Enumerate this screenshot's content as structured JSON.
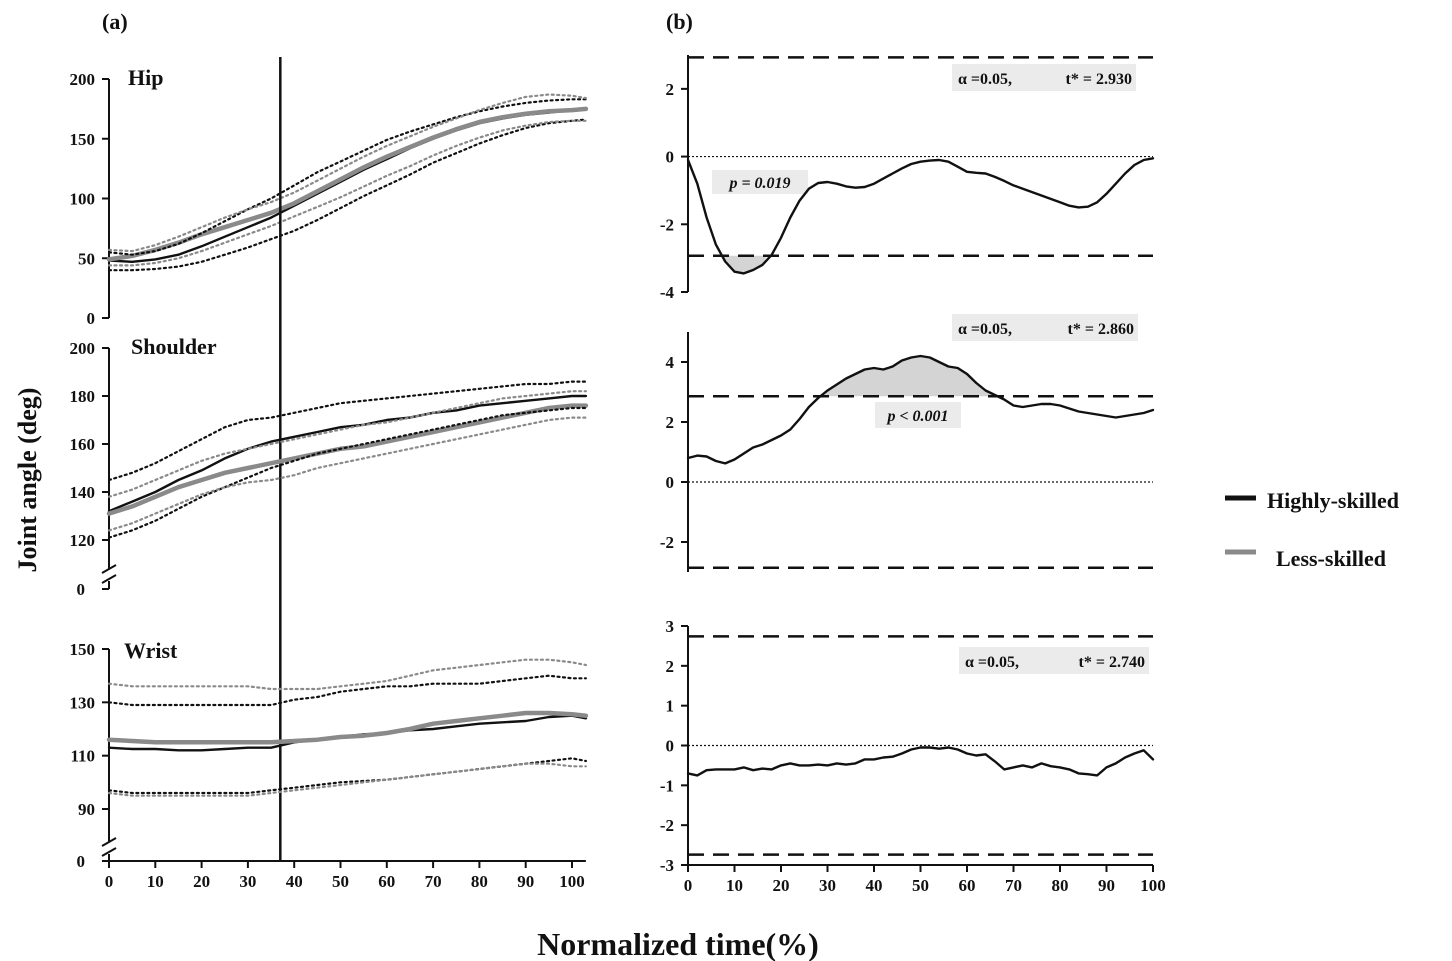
{
  "figure": {
    "panel_a_label": "(a)",
    "panel_b_label": "(b)",
    "y_axis_label": "Joint angle (deg)",
    "x_axis_label": "Normalized time(%)",
    "legend": [
      {
        "label": "Highly-skilled",
        "color": "#111111"
      },
      {
        "label": "Less-skilled",
        "color": "#8a8a8a"
      }
    ]
  },
  "chart_data": [
    {
      "type": "line",
      "panel": "a",
      "title": "Hip",
      "xlim": [
        0,
        103
      ],
      "ylim": [
        0,
        200
      ],
      "yticks": [
        0,
        50,
        100,
        150,
        200
      ],
      "xticks": [],
      "axis_break": false,
      "vline_x": 37,
      "x": [
        0,
        5,
        10,
        15,
        20,
        25,
        30,
        35,
        40,
        45,
        50,
        55,
        60,
        65,
        70,
        75,
        80,
        85,
        90,
        95,
        100,
        103
      ],
      "series": [
        {
          "name": "Highly-skilled",
          "style": "mean",
          "color": "#111111",
          "values": [
            48,
            47,
            49,
            53,
            60,
            68,
            76,
            84,
            94,
            104,
            114,
            124,
            133,
            142,
            150,
            157,
            163,
            167,
            170,
            172,
            174,
            175
          ]
        },
        {
          "name": "Less-skilled",
          "style": "mean",
          "color": "#8a8a8a",
          "values": [
            49,
            52,
            57,
            63,
            70,
            76,
            82,
            88,
            96,
            106,
            116,
            126,
            135,
            143,
            151,
            158,
            164,
            168,
            171,
            173,
            174,
            175
          ]
        },
        {
          "name": "Highly-skilled",
          "style": "band",
          "color": "#111111",
          "values": [
            55,
            53,
            56,
            62,
            71,
            81,
            91,
            100,
            111,
            122,
            131,
            140,
            149,
            156,
            162,
            168,
            173,
            177,
            180,
            182,
            183,
            183
          ]
        },
        {
          "name": "Highly-skilled",
          "style": "band",
          "color": "#111111",
          "values": [
            40,
            40,
            41,
            43,
            47,
            53,
            59,
            66,
            73,
            82,
            92,
            102,
            111,
            120,
            130,
            138,
            146,
            153,
            159,
            163,
            165,
            166
          ]
        },
        {
          "name": "Less-skilled",
          "style": "band",
          "color": "#8a8a8a",
          "values": [
            57,
            56,
            61,
            68,
            76,
            84,
            91,
            97,
            105,
            115,
            125,
            135,
            144,
            152,
            160,
            167,
            174,
            180,
            185,
            187,
            186,
            184
          ]
        },
        {
          "name": "Less-skilled",
          "style": "band",
          "color": "#8a8a8a",
          "values": [
            44,
            44,
            46,
            50,
            56,
            63,
            70,
            77,
            85,
            93,
            101,
            110,
            119,
            127,
            136,
            144,
            151,
            157,
            161,
            164,
            165,
            165
          ]
        }
      ]
    },
    {
      "type": "line",
      "panel": "a",
      "title": "Shoulder",
      "xlim": [
        0,
        103
      ],
      "ylim": [
        110,
        200
      ],
      "yticks": [
        120,
        140,
        160,
        180,
        200
      ],
      "extra_tick": 0,
      "xticks": [],
      "axis_break": true,
      "vline_x": 37,
      "x": [
        0,
        5,
        10,
        15,
        20,
        25,
        30,
        35,
        40,
        45,
        50,
        55,
        60,
        65,
        70,
        75,
        80,
        85,
        90,
        95,
        100,
        103
      ],
      "series": [
        {
          "name": "Highly-skilled",
          "style": "mean",
          "color": "#111111",
          "values": [
            132,
            136,
            140,
            145,
            149,
            154,
            158,
            161,
            163,
            165,
            167,
            168,
            170,
            171,
            173,
            174,
            176,
            177,
            178,
            179,
            180,
            180
          ]
        },
        {
          "name": "Less-skilled",
          "style": "mean",
          "color": "#8a8a8a",
          "values": [
            131,
            134,
            138,
            142,
            145,
            148,
            150,
            152,
            154,
            156,
            158,
            159,
            161,
            163,
            165,
            167,
            169,
            171,
            173,
            175,
            176,
            176
          ]
        },
        {
          "name": "Highly-skilled",
          "style": "band",
          "color": "#111111",
          "values": [
            145,
            148,
            152,
            157,
            162,
            167,
            170,
            171,
            173,
            175,
            177,
            178,
            179,
            180,
            181,
            182,
            183,
            184,
            185,
            185,
            186,
            186
          ]
        },
        {
          "name": "Highly-skilled",
          "style": "band",
          "color": "#111111",
          "values": [
            121,
            124,
            128,
            133,
            138,
            142,
            146,
            150,
            153,
            156,
            158,
            160,
            162,
            164,
            166,
            168,
            170,
            172,
            173,
            174,
            175,
            175
          ]
        },
        {
          "name": "Less-skilled",
          "style": "band",
          "color": "#8a8a8a",
          "values": [
            138,
            141,
            145,
            149,
            153,
            156,
            158,
            160,
            162,
            164,
            166,
            168,
            169,
            171,
            173,
            175,
            177,
            179,
            180,
            181,
            182,
            182
          ]
        },
        {
          "name": "Less-skilled",
          "style": "band",
          "color": "#8a8a8a",
          "values": [
            124,
            127,
            131,
            135,
            139,
            142,
            144,
            145,
            147,
            150,
            152,
            154,
            156,
            158,
            160,
            162,
            164,
            166,
            168,
            170,
            171,
            171
          ]
        }
      ]
    },
    {
      "type": "line",
      "panel": "a",
      "title": "Wrist",
      "xlim": [
        0,
        103
      ],
      "ylim": [
        80,
        150
      ],
      "yticks": [
        90,
        110,
        130,
        150
      ],
      "extra_tick": 0,
      "xticks": [
        0,
        10,
        20,
        30,
        40,
        50,
        60,
        70,
        80,
        90,
        100
      ],
      "axis_break": true,
      "vline_x": 37,
      "x": [
        0,
        5,
        10,
        15,
        20,
        25,
        30,
        35,
        40,
        45,
        50,
        55,
        60,
        65,
        70,
        75,
        80,
        85,
        90,
        95,
        100,
        103
      ],
      "series": [
        {
          "name": "Highly-skilled",
          "style": "mean",
          "color": "#111111",
          "values": [
            113,
            112.5,
            112.5,
            112,
            112,
            112.5,
            113,
            113,
            115,
            116,
            117,
            118,
            118.5,
            119.5,
            120,
            121,
            122,
            122.5,
            123,
            124.5,
            125,
            124
          ]
        },
        {
          "name": "Less-skilled",
          "style": "mean",
          "color": "#8a8a8a",
          "values": [
            116,
            115.5,
            115,
            115,
            115,
            115,
            115,
            115,
            115.5,
            116,
            117,
            117.5,
            118.5,
            120,
            122,
            123,
            124,
            125,
            126,
            126,
            125.5,
            125
          ]
        },
        {
          "name": "Highly-skilled",
          "style": "band",
          "color": "#111111",
          "values": [
            130,
            129,
            129,
            129,
            129,
            129,
            129,
            129,
            131,
            132,
            134,
            135,
            136,
            136,
            137,
            137,
            137,
            138,
            139,
            140,
            139,
            139
          ]
        },
        {
          "name": "Highly-skilled",
          "style": "band",
          "color": "#111111",
          "values": [
            97,
            96,
            96,
            96,
            96,
            96,
            96,
            97,
            98,
            99,
            100,
            100.5,
            101,
            102,
            103,
            104,
            105,
            106,
            107,
            108,
            109,
            108
          ]
        },
        {
          "name": "Less-skilled",
          "style": "band",
          "color": "#8a8a8a",
          "values": [
            137,
            136,
            136,
            136,
            136,
            136,
            136,
            135,
            135,
            135,
            136,
            137,
            138,
            140,
            142,
            143,
            144,
            145,
            146,
            146,
            145,
            144
          ]
        },
        {
          "name": "Less-skilled",
          "style": "band",
          "color": "#8a8a8a",
          "values": [
            96,
            95,
            95,
            95,
            95,
            95,
            95,
            96,
            97,
            98,
            99,
            100,
            101,
            102,
            103,
            104,
            105,
            106,
            107,
            107,
            106,
            106
          ]
        }
      ]
    },
    {
      "type": "line",
      "panel": "b",
      "title": "",
      "xlim": [
        0,
        100
      ],
      "ylim": [
        -4,
        3
      ],
      "yticks": [
        -4,
        -2,
        0,
        2
      ],
      "xticks": [],
      "threshold": 2.93,
      "stat_alpha": "α =0.05,",
      "stat_t": "t* = 2.930",
      "p_label": "p = 0.019",
      "x": [
        0,
        2,
        4,
        6,
        8,
        10,
        12,
        14,
        16,
        18,
        20,
        22,
        24,
        26,
        28,
        30,
        32,
        34,
        36,
        38,
        40,
        42,
        44,
        46,
        48,
        50,
        52,
        54,
        56,
        58,
        60,
        62,
        64,
        66,
        68,
        70,
        72,
        74,
        76,
        78,
        80,
        82,
        84,
        86,
        88,
        90,
        92,
        94,
        96,
        98,
        100
      ],
      "series": [
        {
          "name": "",
          "color": "#111111",
          "values": [
            -0.1,
            -0.8,
            -1.8,
            -2.6,
            -3.1,
            -3.4,
            -3.45,
            -3.35,
            -3.2,
            -2.9,
            -2.4,
            -1.8,
            -1.3,
            -0.95,
            -0.78,
            -0.75,
            -0.8,
            -0.88,
            -0.92,
            -0.9,
            -0.8,
            -0.65,
            -0.5,
            -0.35,
            -0.22,
            -0.15,
            -0.12,
            -0.1,
            -0.15,
            -0.3,
            -0.45,
            -0.48,
            -0.5,
            -0.6,
            -0.72,
            -0.85,
            -0.95,
            -1.05,
            -1.15,
            -1.25,
            -1.35,
            -1.45,
            -1.5,
            -1.48,
            -1.35,
            -1.1,
            -0.8,
            -0.5,
            -0.25,
            -0.1,
            -0.05
          ]
        }
      ]
    },
    {
      "type": "line",
      "panel": "b",
      "title": "",
      "xlim": [
        0,
        100
      ],
      "ylim": [
        -3,
        5
      ],
      "yticks": [
        -2,
        0,
        2,
        4
      ],
      "xticks": [],
      "threshold": 2.86,
      "stat_alpha": "α =0.05,",
      "stat_t": "t* = 2.860",
      "p_label": "p < 0.001",
      "x": [
        0,
        2,
        4,
        6,
        8,
        10,
        12,
        14,
        16,
        18,
        20,
        22,
        24,
        26,
        28,
        30,
        32,
        34,
        36,
        38,
        40,
        42,
        44,
        46,
        48,
        50,
        52,
        54,
        56,
        58,
        60,
        62,
        64,
        66,
        68,
        70,
        72,
        74,
        76,
        78,
        80,
        82,
        84,
        86,
        88,
        90,
        92,
        94,
        96,
        98,
        100
      ],
      "series": [
        {
          "name": "",
          "color": "#111111",
          "values": [
            0.8,
            0.88,
            0.85,
            0.7,
            0.62,
            0.75,
            0.95,
            1.15,
            1.25,
            1.4,
            1.55,
            1.75,
            2.1,
            2.5,
            2.8,
            3.05,
            3.25,
            3.45,
            3.6,
            3.75,
            3.8,
            3.75,
            3.85,
            4.05,
            4.15,
            4.2,
            4.15,
            4.0,
            3.85,
            3.8,
            3.6,
            3.3,
            3.05,
            2.9,
            2.75,
            2.55,
            2.5,
            2.55,
            2.6,
            2.6,
            2.55,
            2.45,
            2.35,
            2.3,
            2.25,
            2.2,
            2.15,
            2.2,
            2.25,
            2.3,
            2.4
          ]
        }
      ]
    },
    {
      "type": "line",
      "panel": "b",
      "title": "",
      "xlim": [
        0,
        100
      ],
      "ylim": [
        -3,
        3
      ],
      "yticks": [
        -3,
        -2,
        -1,
        0,
        1,
        2,
        3
      ],
      "xticks": [
        0,
        10,
        20,
        30,
        40,
        50,
        60,
        70,
        80,
        90,
        100
      ],
      "threshold": 2.74,
      "stat_alpha": "α =0.05,",
      "stat_t": "t* = 2.740",
      "x": [
        0,
        2,
        4,
        6,
        8,
        10,
        12,
        14,
        16,
        18,
        20,
        22,
        24,
        26,
        28,
        30,
        32,
        34,
        36,
        38,
        40,
        42,
        44,
        46,
        48,
        50,
        52,
        54,
        56,
        58,
        60,
        62,
        64,
        66,
        68,
        70,
        72,
        74,
        76,
        78,
        80,
        82,
        84,
        86,
        88,
        90,
        92,
        94,
        96,
        98,
        100
      ],
      "series": [
        {
          "name": "",
          "color": "#111111",
          "values": [
            -0.7,
            -0.75,
            -0.62,
            -0.6,
            -0.6,
            -0.6,
            -0.55,
            -0.62,
            -0.58,
            -0.6,
            -0.5,
            -0.45,
            -0.5,
            -0.5,
            -0.48,
            -0.5,
            -0.45,
            -0.48,
            -0.45,
            -0.35,
            -0.35,
            -0.3,
            -0.28,
            -0.2,
            -0.1,
            -0.05,
            -0.05,
            -0.08,
            -0.05,
            -0.1,
            -0.2,
            -0.25,
            -0.22,
            -0.4,
            -0.6,
            -0.55,
            -0.5,
            -0.55,
            -0.45,
            -0.52,
            -0.55,
            -0.6,
            -0.7,
            -0.72,
            -0.75,
            -0.55,
            -0.45,
            -0.3,
            -0.2,
            -0.12,
            -0.35
          ]
        }
      ]
    }
  ]
}
